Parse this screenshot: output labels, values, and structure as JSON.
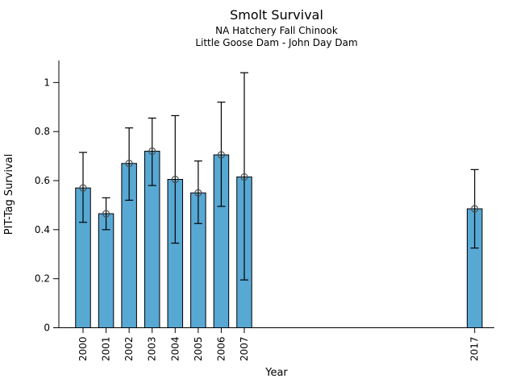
{
  "chart_data": {
    "type": "bar",
    "title": "Smolt Survival",
    "subtitle": [
      "NA Hatchery Fall Chinook",
      "Little Goose Dam - John Day Dam"
    ],
    "xlabel": "Year",
    "ylabel": "PIT-Tag Survival",
    "categories": [
      2000,
      2001,
      2002,
      2003,
      2004,
      2005,
      2006,
      2007,
      2017
    ],
    "values": [
      0.57,
      0.465,
      0.67,
      0.72,
      0.605,
      0.55,
      0.705,
      0.615,
      0.485
    ],
    "error_low": [
      0.43,
      0.4,
      0.52,
      0.58,
      0.345,
      0.425,
      0.495,
      0.195,
      0.325
    ],
    "error_high": [
      0.715,
      0.53,
      0.815,
      0.855,
      0.865,
      0.68,
      0.92,
      1.04,
      0.645
    ],
    "ytick_labels": [
      "0",
      "0.2",
      "0.4",
      "0.6",
      "0.8",
      "1"
    ],
    "ytick_values": [
      0,
      0.2,
      0.4,
      0.6,
      0.8,
      1
    ],
    "xlim": [
      1998.95,
      2017.85
    ],
    "ylim": [
      0,
      1.09
    ],
    "grid": false,
    "legend_position": "none",
    "colors": {
      "bar_fill": "#58a8d4",
      "bar_edge": "#000000",
      "error_bar": "#000000",
      "marker": "#4d4d4d",
      "axis": "#000000",
      "text": "#000000",
      "background": "#ffffff"
    }
  }
}
